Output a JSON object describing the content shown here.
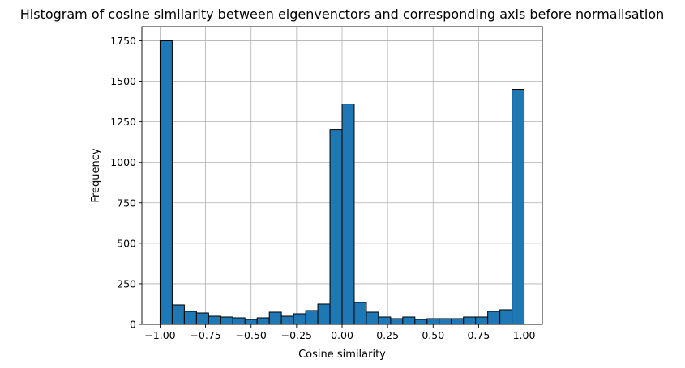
{
  "chart_data": {
    "type": "bar",
    "subtype": "histogram",
    "title": "Histogram of cosine similarity between eigenvenctors and corresponding axis before normalisation",
    "xlabel": "Cosine similarity",
    "ylabel": "Frequency",
    "xlim": [
      -1.1,
      1.1
    ],
    "ylim": [
      0,
      1837
    ],
    "grid": true,
    "bar_color": "#1f77b4",
    "edge_color": "#000000",
    "bin_start": -1.0,
    "bin_end": 1.0,
    "x_ticks": [
      -1.0,
      -0.75,
      -0.5,
      -0.25,
      0.0,
      0.25,
      0.5,
      0.75,
      1.0
    ],
    "x_tick_labels": [
      "−1.00",
      "−0.75",
      "−0.50",
      "−0.25",
      "0.00",
      "0.25",
      "0.50",
      "0.75",
      "1.00"
    ],
    "y_ticks": [
      0,
      250,
      500,
      750,
      1000,
      1250,
      1500,
      1750
    ],
    "y_tick_labels": [
      "0",
      "250",
      "500",
      "750",
      "1000",
      "1250",
      "1500",
      "1750"
    ],
    "values": [
      1750,
      120,
      80,
      70,
      50,
      45,
      40,
      30,
      40,
      75,
      50,
      65,
      85,
      125,
      1200,
      1360,
      135,
      75,
      45,
      35,
      45,
      30,
      35,
      35,
      35,
      45,
      45,
      80,
      90,
      1450
    ]
  }
}
